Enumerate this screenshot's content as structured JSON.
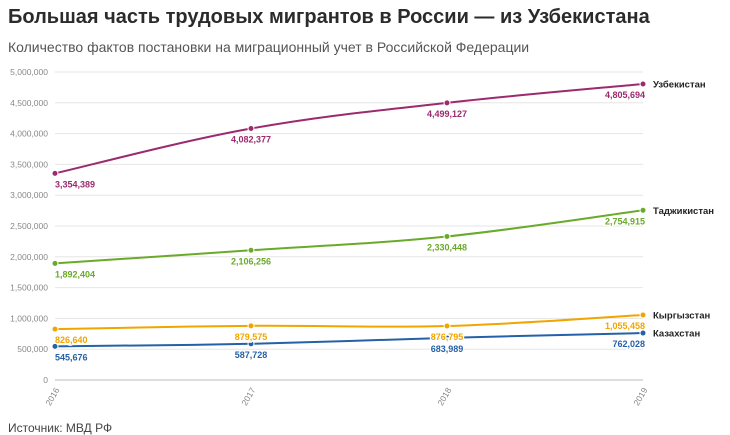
{
  "header": {
    "title": "Большая часть трудовых мигрантов в России — из Узбекистана",
    "subtitle": "Количество фактов постановки на миграционный учет в Российской Федерации"
  },
  "footer": {
    "source": "Источник: МВД РФ"
  },
  "chart_data": {
    "type": "line",
    "title": "Большая часть трудовых мигрантов в России — из Узбекистана",
    "subtitle": "Количество фактов постановки на миграционный учет в Российской Федерации",
    "x": [
      "2016",
      "2017",
      "2018",
      "2019"
    ],
    "yticks": [
      "0",
      "500,000",
      "1,000,000",
      "1,500,000",
      "2,000,000",
      "2,500,000",
      "3,000,000",
      "3,500,000",
      "4,000,000",
      "4,500,000",
      "5,000,000"
    ],
    "ylim": [
      0,
      5000000
    ],
    "grid": true,
    "legend": "series names at line ends (right)",
    "series": [
      {
        "name": "Узбекистан",
        "color": "#9b2a6e",
        "values": [
          3354389,
          4082377,
          4499127,
          4805694
        ],
        "labels": [
          "3,354,389",
          "4,082,377",
          "4,499,127",
          "4,805,694"
        ]
      },
      {
        "name": "Таджикистан",
        "color": "#6aaa2a",
        "values": [
          1892404,
          2106256,
          2330448,
          2754915
        ],
        "labels": [
          "1,892,404",
          "2,106,256",
          "2,330,448",
          "2,754,915"
        ]
      },
      {
        "name": "Кыргызстан",
        "color": "#f0a500",
        "values": [
          826640,
          879575,
          876795,
          1055458
        ],
        "labels": [
          "826,640",
          "879,575",
          "876,795",
          "1,055,458"
        ]
      },
      {
        "name": "Казахстан",
        "color": "#2461a8",
        "values": [
          545676,
          587728,
          683989,
          762028
        ],
        "labels": [
          "545,676",
          "587,728",
          "683,989",
          "762,028"
        ]
      }
    ]
  }
}
